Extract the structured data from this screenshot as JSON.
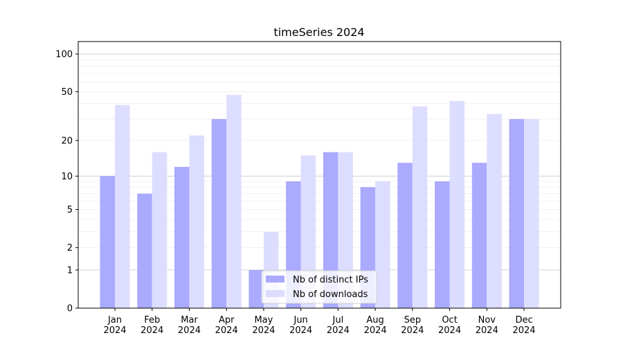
{
  "chart_data": {
    "type": "bar",
    "title": "timeSeries 2024",
    "xlabel": "",
    "ylabel": "",
    "y_scale": "log10(1+y)",
    "ylim": [
      0,
      120
    ],
    "y_ticks": [
      0,
      1,
      2,
      5,
      10,
      20,
      50,
      100
    ],
    "grid": "horizontal, major and minor",
    "legend_placement": "lower center",
    "categories": [
      "Jan\n2024",
      "Feb\n2024",
      "Mar\n2024",
      "Apr\n2024",
      "May\n2024",
      "Jun\n2024",
      "Jul\n2024",
      "Aug\n2024",
      "Sep\n2024",
      "Oct\n2024",
      "Nov\n2024",
      "Dec\n2024"
    ],
    "series": [
      {
        "name": "Nb of distinct IPs",
        "color": "#aaaaff",
        "values": [
          10,
          7,
          12,
          30,
          1,
          9,
          16,
          8,
          13,
          9,
          13,
          30
        ]
      },
      {
        "name": "Nb of downloads",
        "color": "#ddddff",
        "values": [
          39,
          16,
          22,
          47,
          3,
          15,
          16,
          9,
          38,
          42,
          33,
          30
        ]
      }
    ]
  }
}
